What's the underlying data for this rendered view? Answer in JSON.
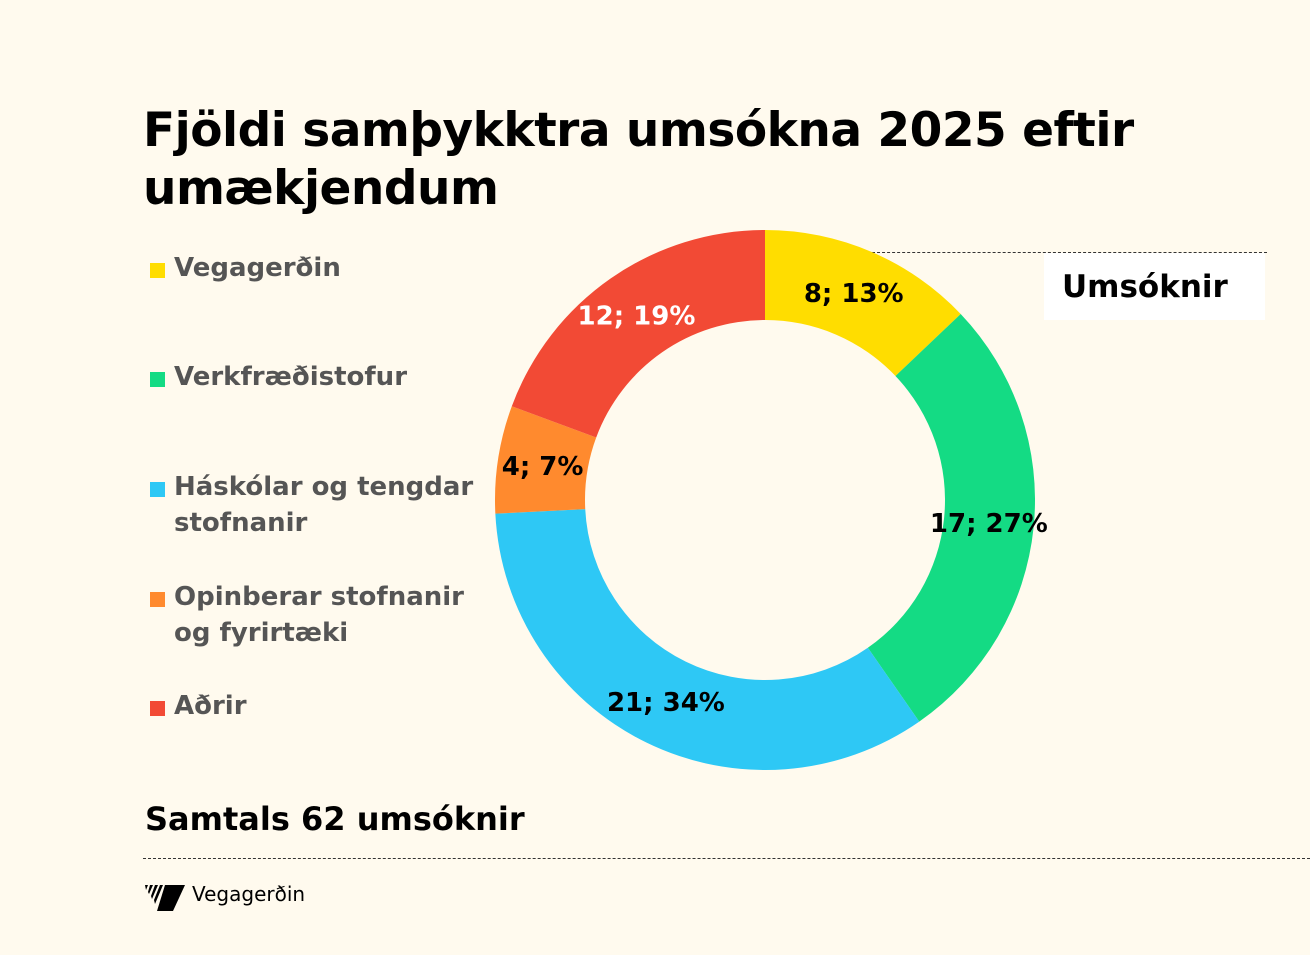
{
  "chart_data": {
    "type": "pie",
    "donut": true,
    "title": "Fjöldi samþykktra umsókna 2025 eftir umækjendum",
    "series_label": "Umsóknir",
    "categories": [
      "Vegagerðin",
      "Verkfræðistofur",
      "Háskólar og tengdar stofnanir",
      "Opinberar stofnanir og fyrirtæki",
      "Aðrir"
    ],
    "values": [
      8,
      17,
      21,
      4,
      12
    ],
    "data_labels": [
      "8; 13%",
      "17; 27%",
      "21; 34%",
      "4; 7%",
      "12; 19%"
    ],
    "colors": [
      "#ffdd00",
      "#14db84",
      "#2ec8f5",
      "#ff8a2e",
      "#f24a35"
    ],
    "label_colors": [
      "#000000",
      "#000000",
      "#000000",
      "#000000",
      "#ffffff"
    ],
    "legend_placement": "left",
    "footnote": "Samtals 62 umsóknir"
  },
  "brand": {
    "name": "Vegagerðin",
    "logo": "vegagerdin-logo"
  }
}
